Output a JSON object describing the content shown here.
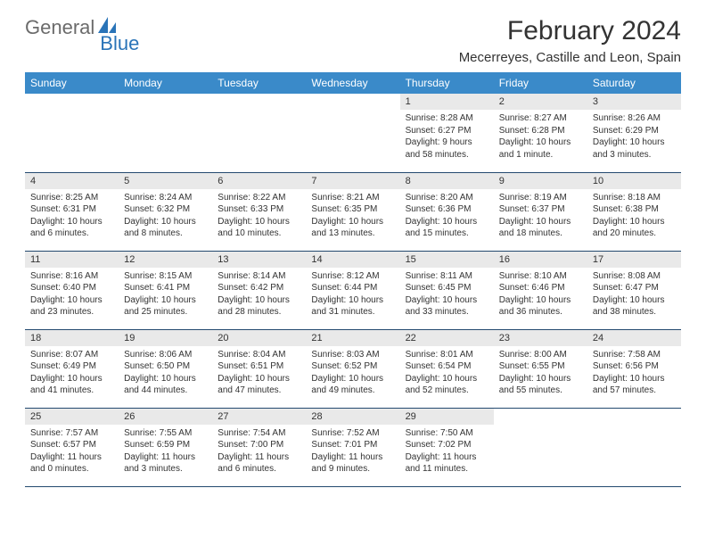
{
  "logo": {
    "general": "General",
    "blue": "Blue"
  },
  "title": "February 2024",
  "location": "Mecerreyes, Castille and Leon, Spain",
  "colors": {
    "header_bg": "#3a8ac9",
    "header_text": "#ffffff",
    "daynum_bg": "#e9e9e9",
    "border": "#23496f",
    "logo_gray": "#6b6b6b",
    "logo_blue": "#2a74b8"
  },
  "weekdays": [
    "Sunday",
    "Monday",
    "Tuesday",
    "Wednesday",
    "Thursday",
    "Friday",
    "Saturday"
  ],
  "weeks": [
    [
      null,
      null,
      null,
      null,
      {
        "n": "1",
        "sr": "8:28 AM",
        "ss": "6:27 PM",
        "dl": "9 hours and 58 minutes."
      },
      {
        "n": "2",
        "sr": "8:27 AM",
        "ss": "6:28 PM",
        "dl": "10 hours and 1 minute."
      },
      {
        "n": "3",
        "sr": "8:26 AM",
        "ss": "6:29 PM",
        "dl": "10 hours and 3 minutes."
      }
    ],
    [
      {
        "n": "4",
        "sr": "8:25 AM",
        "ss": "6:31 PM",
        "dl": "10 hours and 6 minutes."
      },
      {
        "n": "5",
        "sr": "8:24 AM",
        "ss": "6:32 PM",
        "dl": "10 hours and 8 minutes."
      },
      {
        "n": "6",
        "sr": "8:22 AM",
        "ss": "6:33 PM",
        "dl": "10 hours and 10 minutes."
      },
      {
        "n": "7",
        "sr": "8:21 AM",
        "ss": "6:35 PM",
        "dl": "10 hours and 13 minutes."
      },
      {
        "n": "8",
        "sr": "8:20 AM",
        "ss": "6:36 PM",
        "dl": "10 hours and 15 minutes."
      },
      {
        "n": "9",
        "sr": "8:19 AM",
        "ss": "6:37 PM",
        "dl": "10 hours and 18 minutes."
      },
      {
        "n": "10",
        "sr": "8:18 AM",
        "ss": "6:38 PM",
        "dl": "10 hours and 20 minutes."
      }
    ],
    [
      {
        "n": "11",
        "sr": "8:16 AM",
        "ss": "6:40 PM",
        "dl": "10 hours and 23 minutes."
      },
      {
        "n": "12",
        "sr": "8:15 AM",
        "ss": "6:41 PM",
        "dl": "10 hours and 25 minutes."
      },
      {
        "n": "13",
        "sr": "8:14 AM",
        "ss": "6:42 PM",
        "dl": "10 hours and 28 minutes."
      },
      {
        "n": "14",
        "sr": "8:12 AM",
        "ss": "6:44 PM",
        "dl": "10 hours and 31 minutes."
      },
      {
        "n": "15",
        "sr": "8:11 AM",
        "ss": "6:45 PM",
        "dl": "10 hours and 33 minutes."
      },
      {
        "n": "16",
        "sr": "8:10 AM",
        "ss": "6:46 PM",
        "dl": "10 hours and 36 minutes."
      },
      {
        "n": "17",
        "sr": "8:08 AM",
        "ss": "6:47 PM",
        "dl": "10 hours and 38 minutes."
      }
    ],
    [
      {
        "n": "18",
        "sr": "8:07 AM",
        "ss": "6:49 PM",
        "dl": "10 hours and 41 minutes."
      },
      {
        "n": "19",
        "sr": "8:06 AM",
        "ss": "6:50 PM",
        "dl": "10 hours and 44 minutes."
      },
      {
        "n": "20",
        "sr": "8:04 AM",
        "ss": "6:51 PM",
        "dl": "10 hours and 47 minutes."
      },
      {
        "n": "21",
        "sr": "8:03 AM",
        "ss": "6:52 PM",
        "dl": "10 hours and 49 minutes."
      },
      {
        "n": "22",
        "sr": "8:01 AM",
        "ss": "6:54 PM",
        "dl": "10 hours and 52 minutes."
      },
      {
        "n": "23",
        "sr": "8:00 AM",
        "ss": "6:55 PM",
        "dl": "10 hours and 55 minutes."
      },
      {
        "n": "24",
        "sr": "7:58 AM",
        "ss": "6:56 PM",
        "dl": "10 hours and 57 minutes."
      }
    ],
    [
      {
        "n": "25",
        "sr": "7:57 AM",
        "ss": "6:57 PM",
        "dl": "11 hours and 0 minutes."
      },
      {
        "n": "26",
        "sr": "7:55 AM",
        "ss": "6:59 PM",
        "dl": "11 hours and 3 minutes."
      },
      {
        "n": "27",
        "sr": "7:54 AM",
        "ss": "7:00 PM",
        "dl": "11 hours and 6 minutes."
      },
      {
        "n": "28",
        "sr": "7:52 AM",
        "ss": "7:01 PM",
        "dl": "11 hours and 9 minutes."
      },
      {
        "n": "29",
        "sr": "7:50 AM",
        "ss": "7:02 PM",
        "dl": "11 hours and 11 minutes."
      },
      null,
      null
    ]
  ],
  "labels": {
    "sunrise": "Sunrise:",
    "sunset": "Sunset:",
    "daylight": "Daylight:"
  }
}
